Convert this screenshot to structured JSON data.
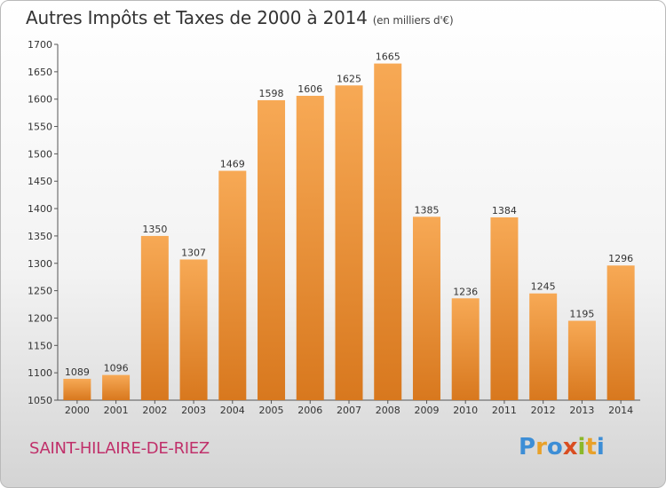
{
  "header": {
    "title": "Autres Impôts et Taxes de 2000 à 2014",
    "unit": "(en milliers d'€)"
  },
  "footer": {
    "commune": "SAINT-HILAIRE-DE-RIEZ",
    "logo": "Proxiti"
  },
  "colors": {
    "bar_light": "#f7a955",
    "bar_dark": "#d8781e",
    "commune_text": "#c0306a",
    "logo_letters": [
      "#3d8ed6",
      "#e8a12a",
      "#3d8ed6",
      "#d94d21",
      "#8bb82a",
      "#e8a12a",
      "#3d8ed6"
    ]
  },
  "chart_data": {
    "type": "bar",
    "title": "Autres Impôts et Taxes de 2000 à 2014",
    "subtitle": "(en milliers d'€)",
    "xlabel": "",
    "ylabel": "",
    "categories": [
      "2000",
      "2001",
      "2002",
      "2003",
      "2004",
      "2005",
      "2006",
      "2007",
      "2008",
      "2009",
      "2010",
      "2011",
      "2012",
      "2013",
      "2014"
    ],
    "values": [
      1089,
      1096,
      1350,
      1307,
      1469,
      1598,
      1606,
      1625,
      1665,
      1385,
      1236,
      1384,
      1245,
      1195,
      1296
    ],
    "ylim": [
      1050,
      1700
    ],
    "yticks": [
      1050,
      1100,
      1150,
      1200,
      1250,
      1300,
      1350,
      1400,
      1450,
      1500,
      1550,
      1600,
      1650,
      1700
    ],
    "grid": false,
    "legend": "none"
  }
}
